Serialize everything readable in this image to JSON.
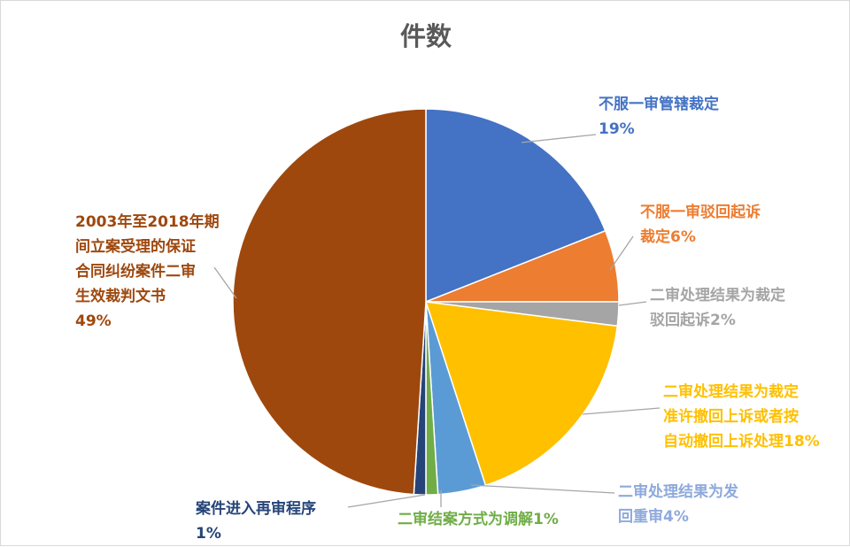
{
  "chart_data": {
    "type": "pie",
    "title": "件数",
    "start_angle_deg": 0,
    "direction": "clockwise",
    "slices": [
      {
        "lines": [
          "不服一审管辖裁定",
          "19%"
        ],
        "value": 19,
        "color": "#4472C4",
        "label_color": "#4472C4",
        "percent_label": "19%"
      },
      {
        "lines": [
          "不服一审驳回起诉",
          "裁定6%"
        ],
        "value": 6,
        "color": "#ED7D31",
        "label_color": "#ED7D31",
        "percent_label": "6%"
      },
      {
        "lines": [
          "二审处理结果为裁定",
          "驳回起诉2%"
        ],
        "value": 2,
        "color": "#A5A5A5",
        "label_color": "#A5A5A5",
        "percent_label": "2%"
      },
      {
        "lines": [
          "二审处理结果为裁定",
          "准许撤回上诉或者按",
          "自动撤回上诉处理18%"
        ],
        "value": 18,
        "color": "#FFC000",
        "label_color": "#FFC000",
        "percent_label": "18%"
      },
      {
        "lines": [
          "二审处理结果为发",
          "回重审4%"
        ],
        "value": 4,
        "color": "#5B9BD5",
        "label_color": "#8EA9DB",
        "percent_label": "4%"
      },
      {
        "lines": [
          "二审结案方式为调解1%"
        ],
        "value": 1,
        "color": "#70AD47",
        "label_color": "#70AD47",
        "percent_label": "1%"
      },
      {
        "lines": [
          "案件进入再审程序",
          "1%"
        ],
        "value": 1,
        "color": "#264478",
        "label_color": "#264478",
        "percent_label": "1%"
      },
      {
        "lines": [
          "2003年至2018年期",
          "间立案受理的保证",
          "合同纠纷案件二审",
          "生效裁判文书",
          "49%"
        ],
        "value": 49,
        "color": "#9E480E",
        "label_color": "#9E480E",
        "percent_label": "49%"
      }
    ]
  }
}
